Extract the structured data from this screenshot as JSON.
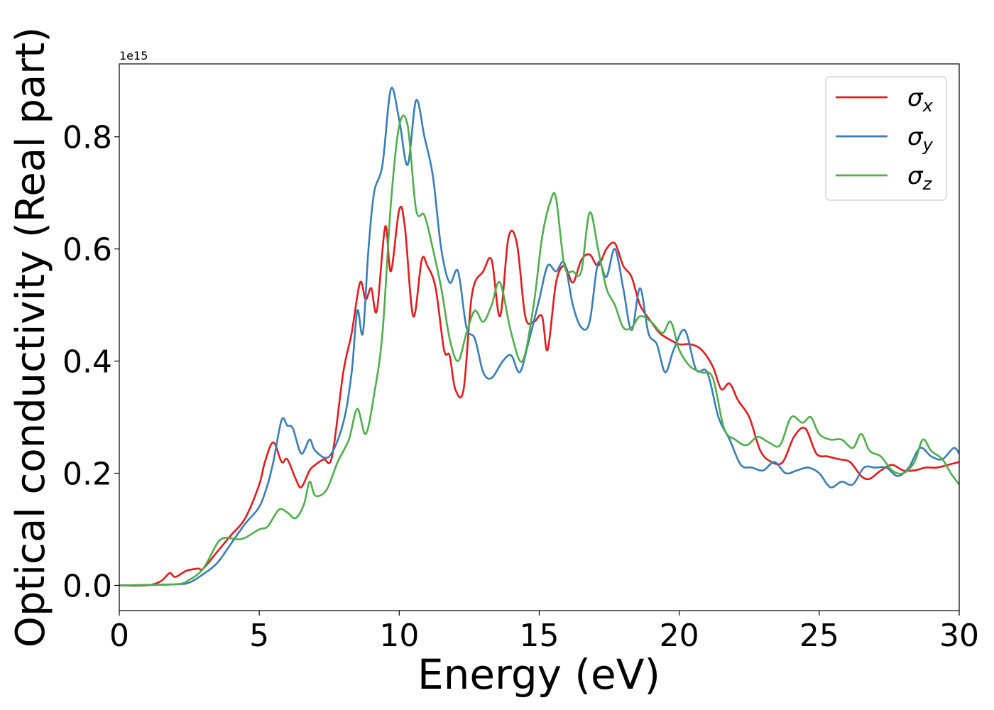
{
  "chart_data": {
    "type": "line",
    "title": "",
    "xlabel": "Energy (eV)",
    "ylabel": "Optical conductivity (Real part)",
    "y_offset_text": "1e15",
    "xlim": [
      0,
      30
    ],
    "ylim": [
      -0.045,
      0.93
    ],
    "x_ticks": [
      0,
      5,
      10,
      15,
      20,
      25,
      30
    ],
    "x_tick_labels": [
      "0",
      "5",
      "10",
      "15",
      "20",
      "25",
      "30"
    ],
    "y_ticks": [
      0.0,
      0.2,
      0.4,
      0.6,
      0.8
    ],
    "y_tick_labels": [
      "0.0",
      "0.2",
      "0.4",
      "0.6",
      "0.8"
    ],
    "grid": false,
    "legend": "top-right",
    "series": [
      {
        "name": "σx",
        "symbol": "σ",
        "subscript": "x",
        "color": "#e41a1c",
        "points": [
          [
            0,
            0
          ],
          [
            1,
            0
          ],
          [
            1.5,
            0.008
          ],
          [
            1.8,
            0.022
          ],
          [
            2.0,
            0.015
          ],
          [
            2.4,
            0.026
          ],
          [
            2.8,
            0.03
          ],
          [
            3.0,
            0.03
          ],
          [
            3.5,
            0.06
          ],
          [
            4,
            0.09
          ],
          [
            4.5,
            0.12
          ],
          [
            5.0,
            0.18
          ],
          [
            5.2,
            0.22
          ],
          [
            5.5,
            0.255
          ],
          [
            5.8,
            0.22
          ],
          [
            6.0,
            0.225
          ],
          [
            6.3,
            0.19
          ],
          [
            6.5,
            0.175
          ],
          [
            6.8,
            0.205
          ],
          [
            7.0,
            0.215
          ],
          [
            7.3,
            0.225
          ],
          [
            7.6,
            0.23
          ],
          [
            8.0,
            0.38
          ],
          [
            8.3,
            0.45
          ],
          [
            8.6,
            0.54
          ],
          [
            8.8,
            0.51
          ],
          [
            9.0,
            0.53
          ],
          [
            9.2,
            0.49
          ],
          [
            9.5,
            0.64
          ],
          [
            9.7,
            0.56
          ],
          [
            10.0,
            0.67
          ],
          [
            10.2,
            0.64
          ],
          [
            10.5,
            0.48
          ],
          [
            10.8,
            0.58
          ],
          [
            11.0,
            0.57
          ],
          [
            11.3,
            0.53
          ],
          [
            11.6,
            0.42
          ],
          [
            11.8,
            0.41
          ],
          [
            12.0,
            0.35
          ],
          [
            12.3,
            0.35
          ],
          [
            12.6,
            0.52
          ],
          [
            13.0,
            0.56
          ],
          [
            13.3,
            0.58
          ],
          [
            13.6,
            0.48
          ],
          [
            13.9,
            0.62
          ],
          [
            14.2,
            0.61
          ],
          [
            14.5,
            0.48
          ],
          [
            14.8,
            0.47
          ],
          [
            15.1,
            0.48
          ],
          [
            15.3,
            0.42
          ],
          [
            15.6,
            0.54
          ],
          [
            15.9,
            0.57
          ],
          [
            16.2,
            0.54
          ],
          [
            16.5,
            0.58
          ],
          [
            16.8,
            0.59
          ],
          [
            17.1,
            0.57
          ],
          [
            17.4,
            0.6
          ],
          [
            17.7,
            0.61
          ],
          [
            18.0,
            0.57
          ],
          [
            18.3,
            0.55
          ],
          [
            18.6,
            0.5
          ],
          [
            19.0,
            0.47
          ],
          [
            19.3,
            0.45
          ],
          [
            19.6,
            0.44
          ],
          [
            20.0,
            0.43
          ],
          [
            20.4,
            0.43
          ],
          [
            20.8,
            0.42
          ],
          [
            21.2,
            0.39
          ],
          [
            21.5,
            0.35
          ],
          [
            21.8,
            0.36
          ],
          [
            22.1,
            0.33
          ],
          [
            22.5,
            0.3
          ],
          [
            22.9,
            0.24
          ],
          [
            23.3,
            0.22
          ],
          [
            23.7,
            0.22
          ],
          [
            24.1,
            0.265
          ],
          [
            24.5,
            0.28
          ],
          [
            24.9,
            0.235
          ],
          [
            25.3,
            0.23
          ],
          [
            25.7,
            0.225
          ],
          [
            26.1,
            0.22
          ],
          [
            26.5,
            0.195
          ],
          [
            26.8,
            0.19
          ],
          [
            27.2,
            0.205
          ],
          [
            27.6,
            0.215
          ],
          [
            28.0,
            0.205
          ],
          [
            28.4,
            0.205
          ],
          [
            28.8,
            0.21
          ],
          [
            29.2,
            0.21
          ],
          [
            29.6,
            0.215
          ],
          [
            30,
            0.22
          ]
        ]
      },
      {
        "name": "σy",
        "symbol": "σ",
        "subscript": "y",
        "color": "#377eb8",
        "points": [
          [
            0,
            0
          ],
          [
            2,
            0.002
          ],
          [
            2.5,
            0.005
          ],
          [
            3.0,
            0.02
          ],
          [
            3.5,
            0.04
          ],
          [
            4.0,
            0.075
          ],
          [
            4.5,
            0.11
          ],
          [
            5.0,
            0.14
          ],
          [
            5.3,
            0.18
          ],
          [
            5.5,
            0.22
          ],
          [
            5.8,
            0.295
          ],
          [
            6.0,
            0.285
          ],
          [
            6.2,
            0.28
          ],
          [
            6.5,
            0.235
          ],
          [
            6.8,
            0.26
          ],
          [
            7.0,
            0.24
          ],
          [
            7.5,
            0.23
          ],
          [
            8.0,
            0.29
          ],
          [
            8.3,
            0.38
          ],
          [
            8.5,
            0.49
          ],
          [
            8.7,
            0.45
          ],
          [
            8.9,
            0.6
          ],
          [
            9.1,
            0.7
          ],
          [
            9.4,
            0.75
          ],
          [
            9.7,
            0.885
          ],
          [
            10.0,
            0.83
          ],
          [
            10.3,
            0.75
          ],
          [
            10.6,
            0.865
          ],
          [
            10.9,
            0.8
          ],
          [
            11.2,
            0.73
          ],
          [
            11.5,
            0.6
          ],
          [
            11.8,
            0.54
          ],
          [
            12.1,
            0.56
          ],
          [
            12.4,
            0.46
          ],
          [
            12.7,
            0.44
          ],
          [
            13.0,
            0.38
          ],
          [
            13.3,
            0.37
          ],
          [
            13.7,
            0.4
          ],
          [
            14.0,
            0.41
          ],
          [
            14.3,
            0.38
          ],
          [
            14.6,
            0.43
          ],
          [
            15.0,
            0.51
          ],
          [
            15.3,
            0.57
          ],
          [
            15.6,
            0.56
          ],
          [
            15.9,
            0.575
          ],
          [
            16.2,
            0.5
          ],
          [
            16.5,
            0.46
          ],
          [
            16.8,
            0.47
          ],
          [
            17.1,
            0.575
          ],
          [
            17.4,
            0.55
          ],
          [
            17.7,
            0.6
          ],
          [
            18.0,
            0.53
          ],
          [
            18.3,
            0.455
          ],
          [
            18.6,
            0.53
          ],
          [
            18.9,
            0.45
          ],
          [
            19.2,
            0.43
          ],
          [
            19.5,
            0.38
          ],
          [
            19.8,
            0.42
          ],
          [
            20.2,
            0.455
          ],
          [
            20.6,
            0.385
          ],
          [
            21.0,
            0.38
          ],
          [
            21.4,
            0.3
          ],
          [
            21.8,
            0.26
          ],
          [
            22.2,
            0.215
          ],
          [
            22.6,
            0.21
          ],
          [
            23.0,
            0.205
          ],
          [
            23.4,
            0.22
          ],
          [
            23.8,
            0.2
          ],
          [
            24.2,
            0.205
          ],
          [
            24.6,
            0.21
          ],
          [
            25.0,
            0.2
          ],
          [
            25.4,
            0.175
          ],
          [
            25.8,
            0.185
          ],
          [
            26.2,
            0.18
          ],
          [
            26.6,
            0.21
          ],
          [
            27.0,
            0.21
          ],
          [
            27.4,
            0.21
          ],
          [
            27.8,
            0.195
          ],
          [
            28.2,
            0.21
          ],
          [
            28.6,
            0.245
          ],
          [
            29.0,
            0.23
          ],
          [
            29.4,
            0.225
          ],
          [
            29.8,
            0.245
          ],
          [
            30,
            0.235
          ]
        ]
      },
      {
        "name": "σz",
        "symbol": "σ",
        "subscript": "z",
        "color": "#4daf4a",
        "points": [
          [
            0,
            0
          ],
          [
            2,
            0.002
          ],
          [
            2.5,
            0.01
          ],
          [
            3.0,
            0.03
          ],
          [
            3.5,
            0.075
          ],
          [
            3.8,
            0.085
          ],
          [
            4.2,
            0.082
          ],
          [
            4.5,
            0.085
          ],
          [
            5.0,
            0.1
          ],
          [
            5.3,
            0.105
          ],
          [
            5.7,
            0.135
          ],
          [
            6.0,
            0.13
          ],
          [
            6.3,
            0.12
          ],
          [
            6.6,
            0.145
          ],
          [
            6.8,
            0.185
          ],
          [
            7.0,
            0.16
          ],
          [
            7.4,
            0.17
          ],
          [
            7.8,
            0.22
          ],
          [
            8.2,
            0.26
          ],
          [
            8.5,
            0.315
          ],
          [
            8.8,
            0.27
          ],
          [
            9.1,
            0.34
          ],
          [
            9.4,
            0.45
          ],
          [
            9.7,
            0.68
          ],
          [
            10.0,
            0.82
          ],
          [
            10.3,
            0.82
          ],
          [
            10.6,
            0.67
          ],
          [
            10.9,
            0.66
          ],
          [
            11.2,
            0.6
          ],
          [
            11.5,
            0.53
          ],
          [
            11.8,
            0.44
          ],
          [
            12.1,
            0.4
          ],
          [
            12.4,
            0.45
          ],
          [
            12.7,
            0.49
          ],
          [
            13.0,
            0.47
          ],
          [
            13.3,
            0.5
          ],
          [
            13.6,
            0.54
          ],
          [
            14.0,
            0.45
          ],
          [
            14.4,
            0.4
          ],
          [
            14.8,
            0.5
          ],
          [
            15.1,
            0.62
          ],
          [
            15.4,
            0.685
          ],
          [
            15.6,
            0.69
          ],
          [
            15.9,
            0.57
          ],
          [
            16.2,
            0.56
          ],
          [
            16.5,
            0.56
          ],
          [
            16.8,
            0.665
          ],
          [
            17.1,
            0.6
          ],
          [
            17.4,
            0.53
          ],
          [
            17.7,
            0.5
          ],
          [
            18.0,
            0.46
          ],
          [
            18.3,
            0.46
          ],
          [
            18.6,
            0.48
          ],
          [
            19.0,
            0.47
          ],
          [
            19.4,
            0.45
          ],
          [
            19.7,
            0.47
          ],
          [
            20.0,
            0.42
          ],
          [
            20.4,
            0.39
          ],
          [
            20.8,
            0.38
          ],
          [
            21.2,
            0.37
          ],
          [
            21.6,
            0.28
          ],
          [
            22.0,
            0.26
          ],
          [
            22.4,
            0.25
          ],
          [
            22.8,
            0.265
          ],
          [
            23.2,
            0.255
          ],
          [
            23.6,
            0.25
          ],
          [
            24.0,
            0.3
          ],
          [
            24.4,
            0.29
          ],
          [
            24.7,
            0.3
          ],
          [
            25.0,
            0.27
          ],
          [
            25.4,
            0.26
          ],
          [
            25.8,
            0.26
          ],
          [
            26.2,
            0.245
          ],
          [
            26.5,
            0.27
          ],
          [
            26.8,
            0.24
          ],
          [
            27.2,
            0.23
          ],
          [
            27.6,
            0.205
          ],
          [
            28.0,
            0.2
          ],
          [
            28.4,
            0.22
          ],
          [
            28.7,
            0.26
          ],
          [
            29.0,
            0.24
          ],
          [
            29.4,
            0.225
          ],
          [
            29.7,
            0.2
          ],
          [
            30,
            0.18
          ]
        ]
      }
    ]
  }
}
